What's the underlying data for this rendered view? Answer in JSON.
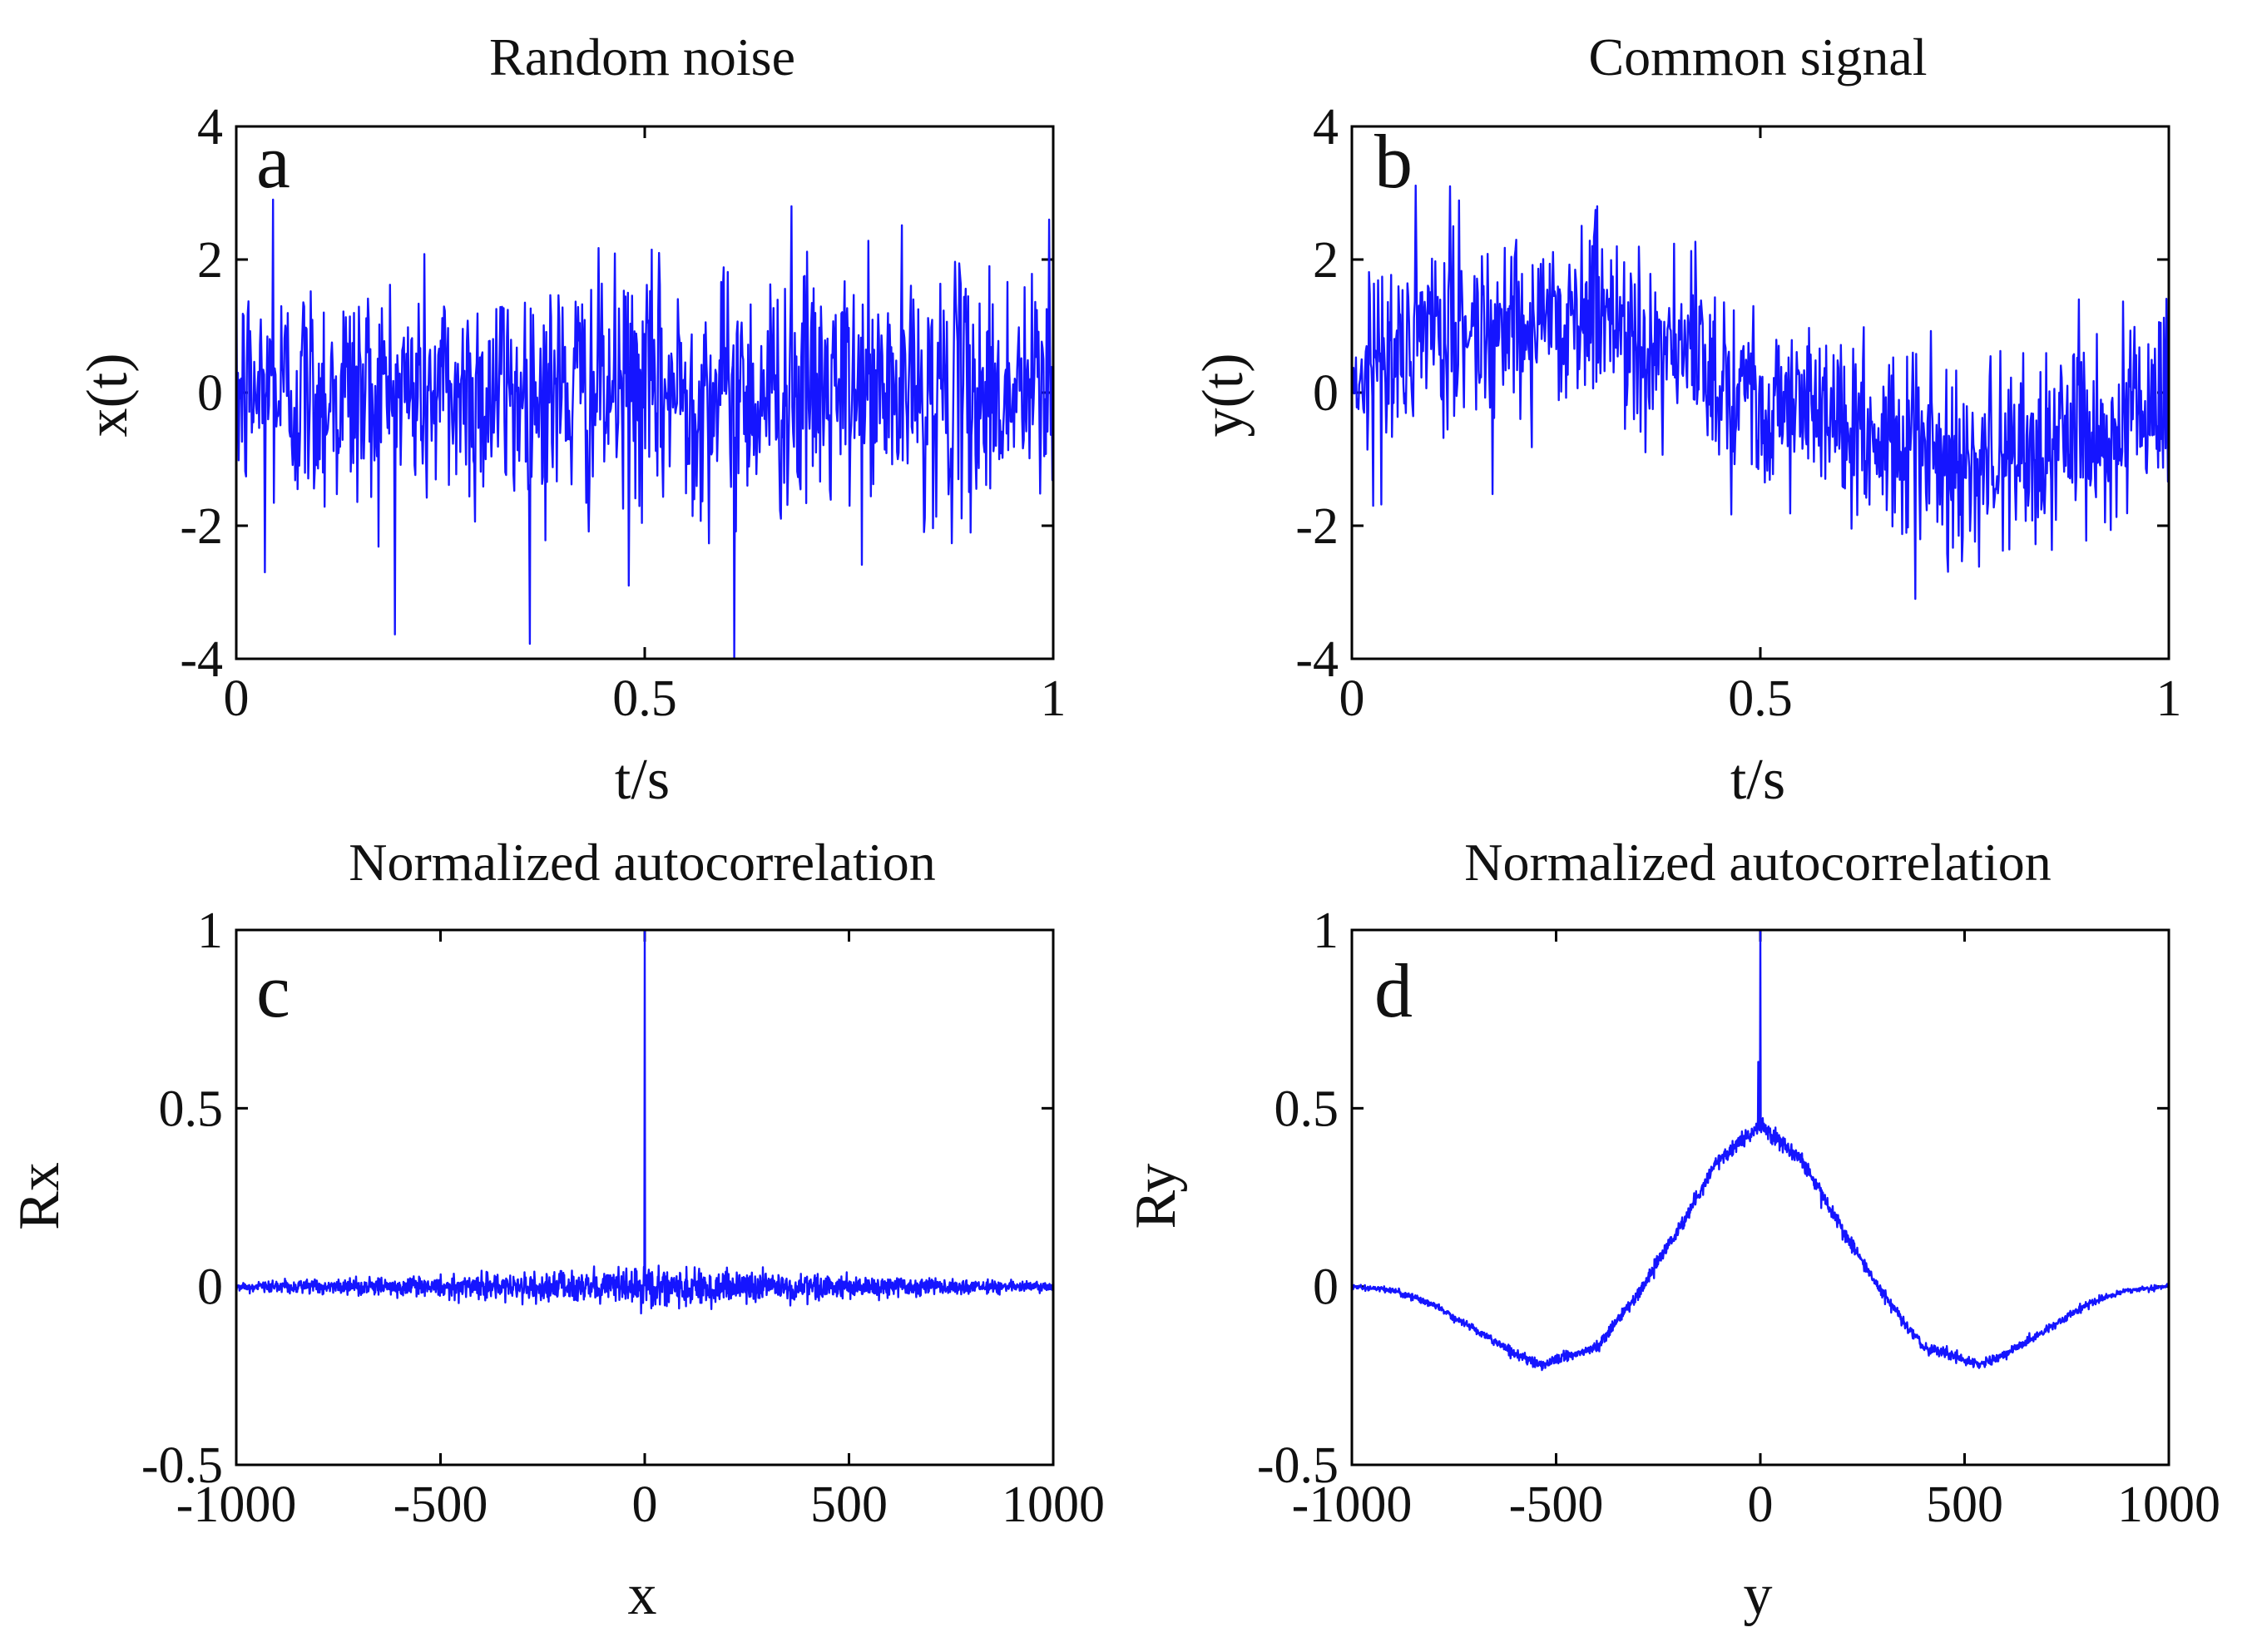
{
  "colors": {
    "series": "#1515ff",
    "axes": "#000000",
    "background": "#ffffff"
  },
  "chart_data": [
    {
      "id": "a",
      "type": "line",
      "panel_label": "a",
      "title": "Random noise",
      "xlabel": "t/s",
      "ylabel": "x(t)",
      "xlim": [
        0,
        1
      ],
      "ylim": [
        -4,
        4
      ],
      "xticks": [
        0,
        0.5,
        1
      ],
      "xtick_labels": [
        "0",
        "0.5",
        "1"
      ],
      "yticks": [
        -4,
        -2,
        0,
        2,
        4
      ],
      "ytick_labels": [
        "-4",
        "-2",
        "0",
        "2",
        "4"
      ],
      "series": [
        {
          "name": "x(t)",
          "trend": {
            "x": [
              0,
              1
            ],
            "y": [
              0,
              0
            ]
          },
          "noise_std": 0.9,
          "notable_points": [
            {
              "x": 0.045,
              "y": 2.9
            },
            {
              "x": 0.035,
              "y": -2.7
            },
            {
              "x": 0.48,
              "y": -2.9
            },
            {
              "x": 0.61,
              "y": -4.0
            },
            {
              "x": 0.68,
              "y": 2.8
            },
            {
              "x": 0.995,
              "y": 2.6
            }
          ],
          "samples": 1000
        }
      ]
    },
    {
      "id": "b",
      "type": "line",
      "panel_label": "b",
      "title": "Common signal",
      "xlabel": "t/s",
      "ylabel": "y(t)",
      "xlim": [
        0,
        1
      ],
      "ylim": [
        -4,
        4
      ],
      "xticks": [
        0,
        0.5,
        1
      ],
      "xtick_labels": [
        "0",
        "0.5",
        "1"
      ],
      "yticks": [
        -4,
        -2,
        0,
        2,
        4
      ],
      "ytick_labels": [
        "-4",
        "-2",
        "0",
        "2",
        "4"
      ],
      "series": [
        {
          "name": "y(t)",
          "trend": {
            "x": [
              0,
              0.1,
              0.2,
              0.3,
              0.4,
              0.5,
              0.6,
              0.7,
              0.8,
              0.9,
              1.0
            ],
            "y": [
              0.3,
              0.8,
              1.1,
              1.2,
              0.6,
              0.0,
              -0.5,
              -0.9,
              -1.0,
              -0.6,
              -0.1
            ]
          },
          "noise_std": 0.7,
          "notable_points": [
            {
              "x": 0.12,
              "y": 3.1
            },
            {
              "x": 0.3,
              "y": 2.8
            },
            {
              "x": 0.69,
              "y": -3.1
            }
          ],
          "samples": 1000
        }
      ]
    },
    {
      "id": "c",
      "type": "line",
      "panel_label": "c",
      "title": "Normalized autocorrelation",
      "xlabel": "x",
      "ylabel": "Rx",
      "xlim": [
        -1000,
        1000
      ],
      "ylim": [
        -0.5,
        1
      ],
      "xticks": [
        -1000,
        -500,
        0,
        500,
        1000
      ],
      "xtick_labels": [
        "-1000",
        "-500",
        "0",
        "500",
        "1000"
      ],
      "yticks": [
        -0.5,
        0,
        0.5,
        1
      ],
      "ytick_labels": [
        "-0.5",
        "0",
        "0.5",
        "1"
      ],
      "series": [
        {
          "name": "Rx",
          "trend": {
            "x": [
              -1000,
              1000
            ],
            "y": [
              0,
              0
            ]
          },
          "noise_std": 0.025,
          "peak": {
            "x": 0,
            "y": 1.0
          },
          "samples": 1999
        }
      ]
    },
    {
      "id": "d",
      "type": "line",
      "panel_label": "d",
      "title": "Normalized autocorrelation",
      "xlabel": "y",
      "ylabel": "Ry",
      "xlim": [
        -1000,
        1000
      ],
      "ylim": [
        -0.5,
        1
      ],
      "xticks": [
        -1000,
        -500,
        0,
        500,
        1000
      ],
      "xtick_labels": [
        "-1000",
        "-500",
        "0",
        "500",
        "1000"
      ],
      "yticks": [
        -0.5,
        0,
        0.5,
        1
      ],
      "ytick_labels": [
        "-0.5",
        "0",
        "0.5",
        "1"
      ],
      "series": [
        {
          "name": "Ry",
          "trend": {
            "x": [
              -1000,
              -900,
              -800,
              -700,
              -600,
              -540,
              -400,
              -300,
              -200,
              -100,
              0,
              100,
              200,
              300,
              400,
              540,
              600,
              700,
              800,
              900,
              1000
            ],
            "y": [
              0.0,
              -0.01,
              -0.05,
              -0.12,
              -0.19,
              -0.22,
              -0.17,
              -0.02,
              0.16,
              0.36,
              0.45,
              0.36,
              0.16,
              -0.02,
              -0.17,
              -0.22,
              -0.19,
              -0.12,
              -0.05,
              -0.01,
              0.0
            ]
          },
          "noise_std": 0.012,
          "peak": {
            "x": 0,
            "y": 1.0
          },
          "secondary_peak": {
            "x": -5,
            "y": 0.63
          },
          "samples": 1999
        }
      ]
    }
  ]
}
